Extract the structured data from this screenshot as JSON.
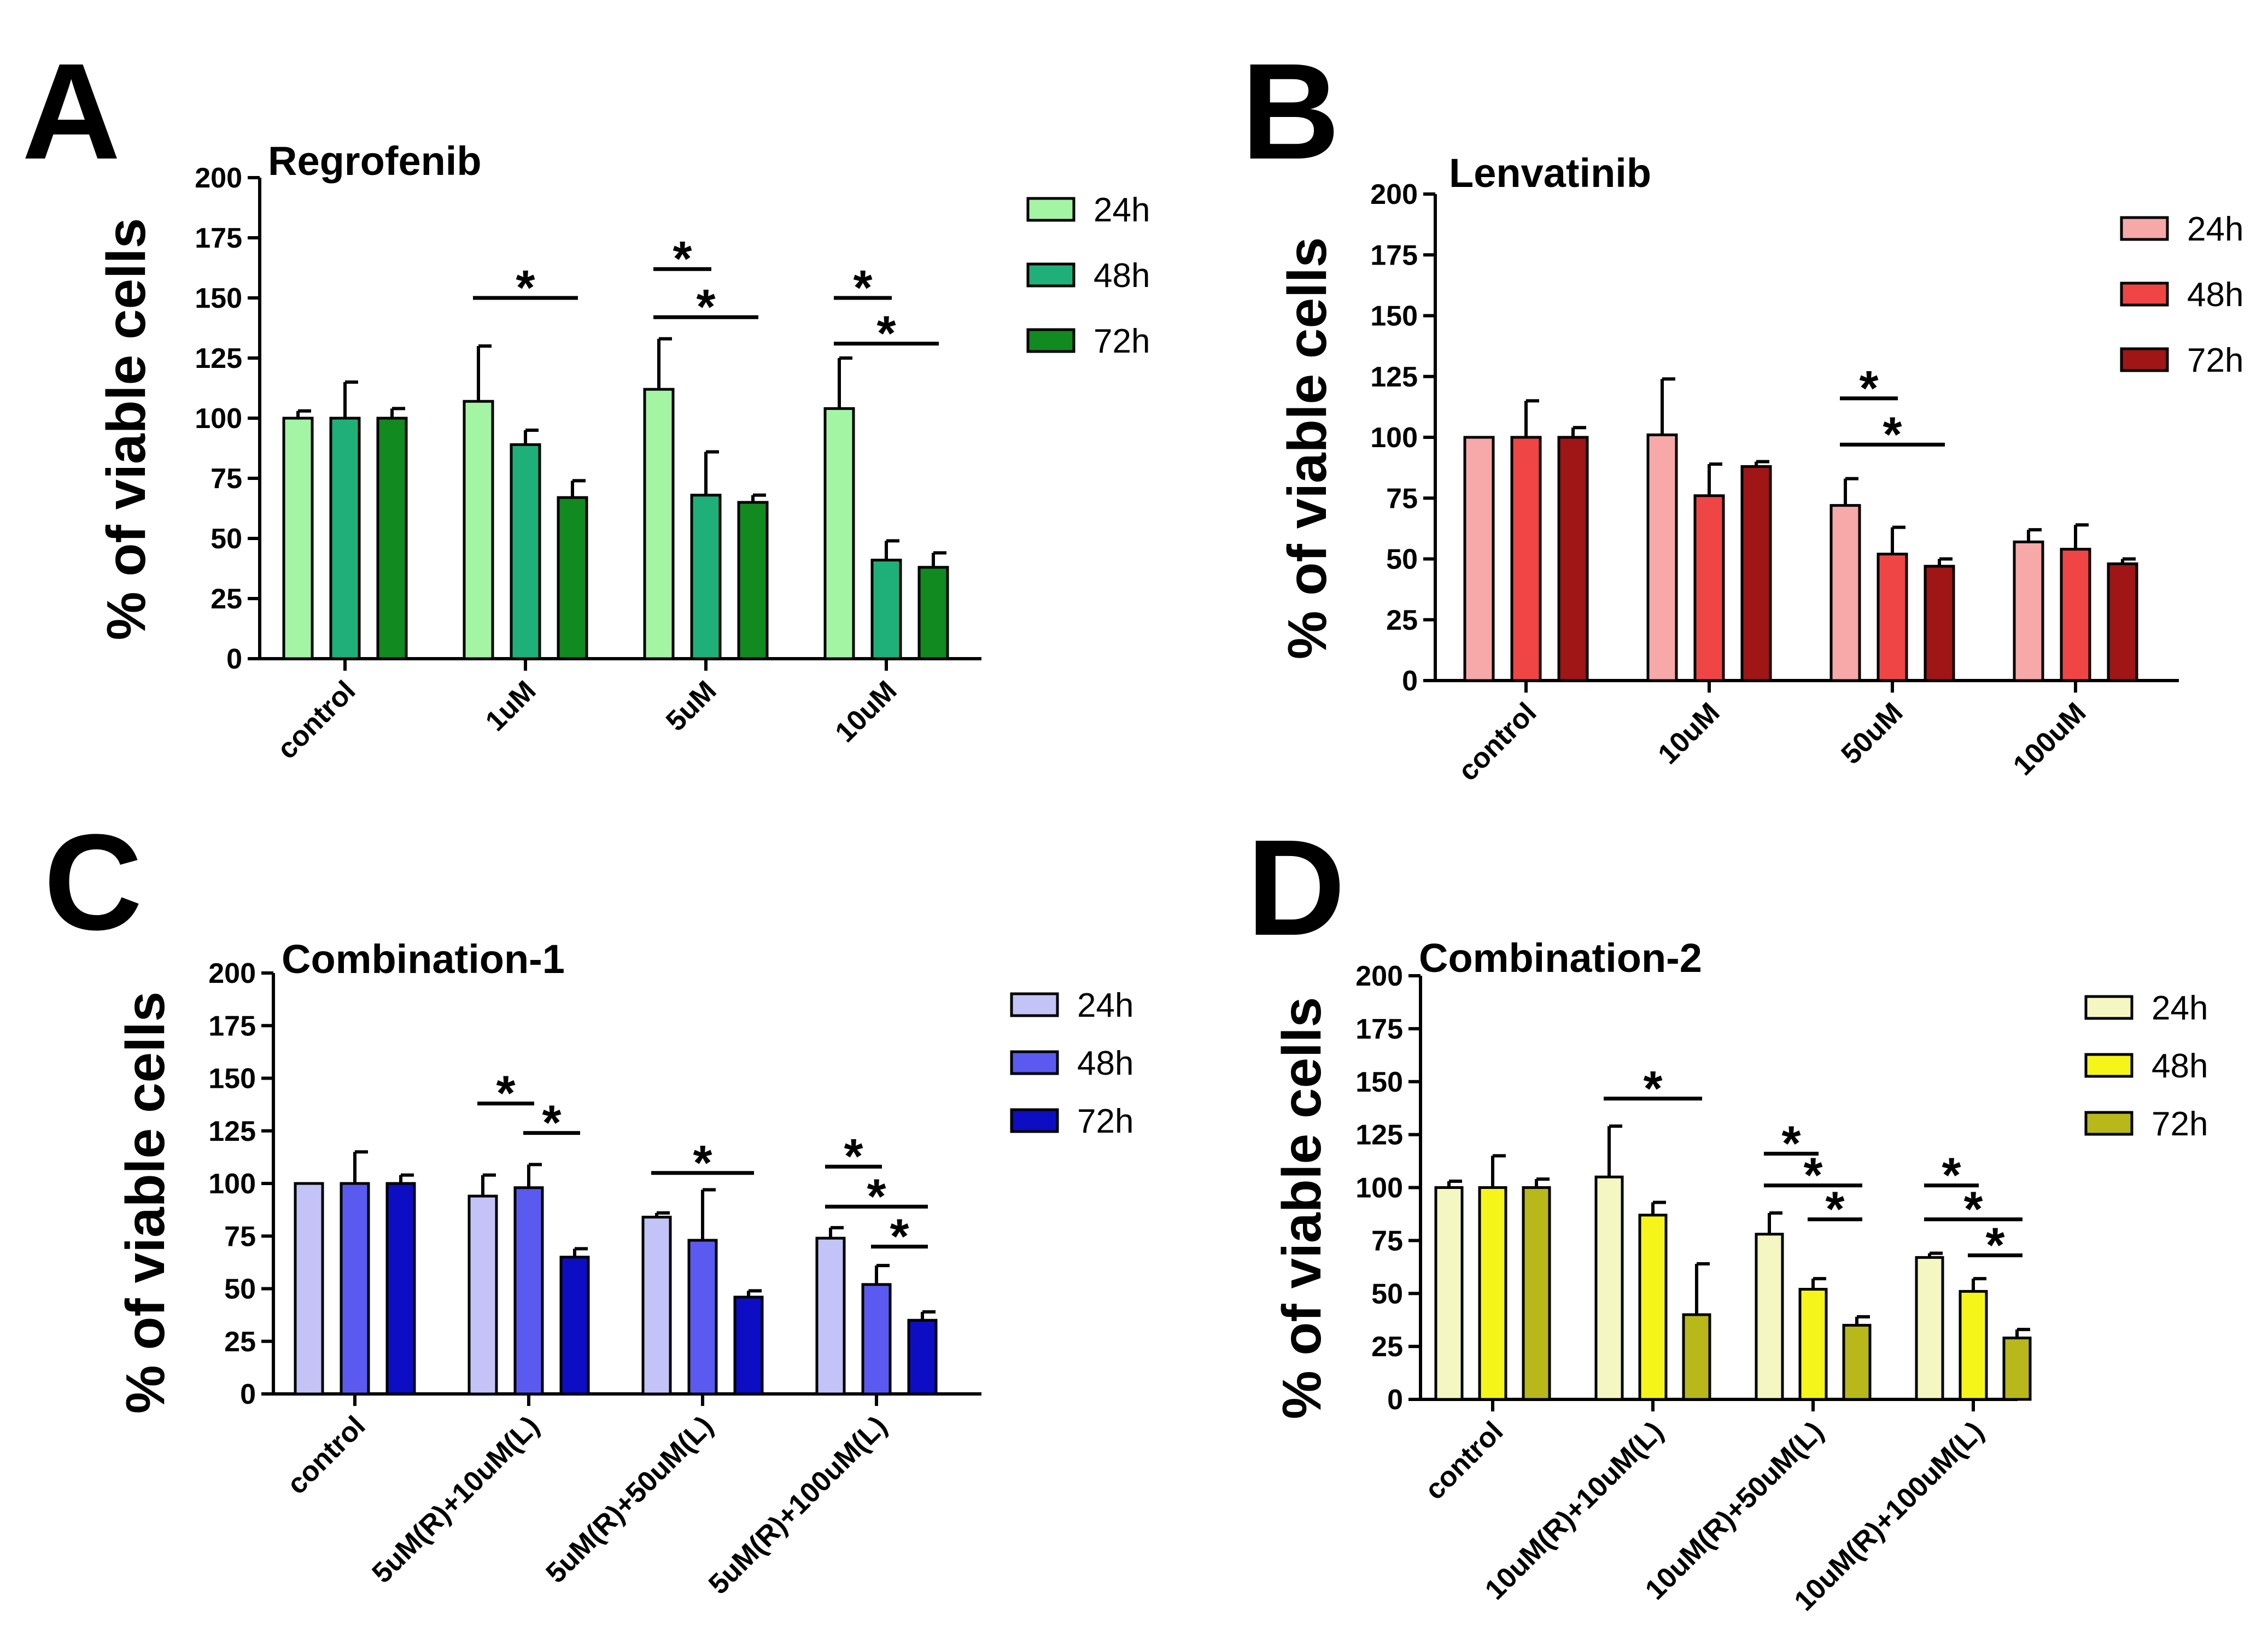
{
  "chart_data": [
    {
      "type": "bar",
      "panel": "A",
      "title": "Regrofenib",
      "ylabel": "% of viable cells",
      "xlabel": "",
      "ylim": [
        0,
        200
      ],
      "yticks": [
        0,
        25,
        50,
        75,
        100,
        125,
        150,
        175,
        200
      ],
      "categories": [
        "control",
        "1uM",
        "5uM",
        "10uM"
      ],
      "series": [
        {
          "name": "24h",
          "color": "#a3f5a3",
          "values": [
            100,
            107,
            112,
            104
          ],
          "errors": [
            3,
            23,
            21,
            21
          ]
        },
        {
          "name": "48h",
          "color": "#1fb07a",
          "values": [
            100,
            89,
            68,
            41
          ],
          "errors": [
            15,
            6,
            18,
            8
          ]
        },
        {
          "name": "72h",
          "color": "#118a1f",
          "values": [
            100,
            67,
            65,
            38
          ],
          "errors": [
            4,
            7,
            3,
            6
          ]
        }
      ],
      "significance": [
        {
          "category": 1,
          "from": 0,
          "to": 2,
          "y": 150,
          "label": "*"
        },
        {
          "category": 2,
          "from": 0,
          "to": 1,
          "y": 162,
          "label": "*"
        },
        {
          "category": 2,
          "from": 0,
          "to": 2,
          "y": 142,
          "label": "*"
        },
        {
          "category": 3,
          "from": 0,
          "to": 1,
          "y": 150,
          "label": "*"
        },
        {
          "category": 3,
          "from": 0,
          "to": 2,
          "y": 131,
          "label": "*"
        }
      ]
    },
    {
      "type": "bar",
      "panel": "B",
      "title": "Lenvatinib",
      "ylabel": "% of viable cells",
      "xlabel": "",
      "ylim": [
        0,
        200
      ],
      "yticks": [
        0,
        25,
        50,
        75,
        100,
        125,
        150,
        175,
        200
      ],
      "categories": [
        "control",
        "10uM",
        "50uM",
        "100uM"
      ],
      "series": [
        {
          "name": "24h",
          "color": "#f7a8a8",
          "values": [
            100,
            101,
            72,
            57
          ],
          "errors": [
            0,
            23,
            11,
            5
          ]
        },
        {
          "name": "48h",
          "color": "#f04545",
          "values": [
            100,
            76,
            52,
            54
          ],
          "errors": [
            15,
            13,
            11,
            10
          ]
        },
        {
          "name": "72h",
          "color": "#a01515",
          "values": [
            100,
            88,
            47,
            48
          ],
          "errors": [
            4,
            2,
            3,
            2
          ]
        }
      ],
      "significance": [
        {
          "category": 2,
          "from": 0,
          "to": 1,
          "y": 116,
          "label": "*"
        },
        {
          "category": 2,
          "from": 0,
          "to": 2,
          "y": 97,
          "label": "*"
        }
      ]
    },
    {
      "type": "bar",
      "panel": "C",
      "title": "Combination-1",
      "ylabel": "% of viable cells",
      "xlabel": "",
      "ylim": [
        0,
        200
      ],
      "yticks": [
        0,
        25,
        50,
        75,
        100,
        125,
        150,
        175,
        200
      ],
      "categories": [
        "control",
        "5uM(R)+10uM(L)",
        "5uM(R)+50uM(L)",
        "5uM(R)+100uM(L)"
      ],
      "series": [
        {
          "name": "24h",
          "color": "#c3c3f7",
          "values": [
            100,
            94,
            84,
            74
          ],
          "errors": [
            0,
            10,
            2,
            5
          ]
        },
        {
          "name": "48h",
          "color": "#5a5af0",
          "values": [
            100,
            98,
            73,
            52
          ],
          "errors": [
            15,
            11,
            24,
            9
          ]
        },
        {
          "name": "72h",
          "color": "#0d0dc4",
          "values": [
            100,
            65,
            46,
            35
          ],
          "errors": [
            4,
            4,
            3,
            4
          ]
        }
      ],
      "significance": [
        {
          "category": 1,
          "from": 0,
          "to": 1,
          "y": 138,
          "label": "*"
        },
        {
          "category": 1,
          "from": 1,
          "to": 2,
          "y": 124,
          "label": "*"
        },
        {
          "category": 2,
          "from": 0,
          "to": 2,
          "y": 105,
          "label": "*"
        },
        {
          "category": 3,
          "from": 0,
          "to": 1,
          "y": 108,
          "label": "*"
        },
        {
          "category": 3,
          "from": 0,
          "to": 2,
          "y": 89,
          "label": "*"
        },
        {
          "category": 3,
          "from": 1,
          "to": 2,
          "y": 70,
          "label": "*"
        }
      ]
    },
    {
      "type": "bar",
      "panel": "D",
      "title": "Combination-2",
      "ylabel": "% of viable cells",
      "xlabel": "",
      "ylim": [
        0,
        200
      ],
      "yticks": [
        0,
        25,
        50,
        75,
        100,
        125,
        150,
        175,
        200
      ],
      "categories": [
        "control",
        "10uM(R)+10uM(L)",
        "10uM(R)+50uM(L)",
        "10uM(R)+100uM(L)"
      ],
      "series": [
        {
          "name": "24h",
          "color": "#f5f7c3",
          "values": [
            100,
            105,
            78,
            67
          ],
          "errors": [
            3,
            24,
            10,
            2
          ]
        },
        {
          "name": "48h",
          "color": "#f5f51a",
          "values": [
            100,
            87,
            52,
            51
          ],
          "errors": [
            15,
            6,
            5,
            6
          ]
        },
        {
          "name": "72h",
          "color": "#b8b81a",
          "values": [
            100,
            40,
            35,
            29
          ],
          "errors": [
            4,
            24,
            4,
            4
          ]
        }
      ],
      "significance": [
        {
          "category": 1,
          "from": 0,
          "to": 2,
          "y": 142,
          "label": "*"
        },
        {
          "category": 2,
          "from": 0,
          "to": 1,
          "y": 116,
          "label": "*"
        },
        {
          "category": 2,
          "from": 0,
          "to": 2,
          "y": 101,
          "label": "*"
        },
        {
          "category": 2,
          "from": 1,
          "to": 2,
          "y": 85,
          "label": "*"
        },
        {
          "category": 3,
          "from": 0,
          "to": 1,
          "y": 101,
          "label": "*"
        },
        {
          "category": 3,
          "from": 0,
          "to": 2,
          "y": 85,
          "label": "*"
        },
        {
          "category": 3,
          "from": 1,
          "to": 2,
          "y": 68,
          "label": "*"
        }
      ]
    }
  ]
}
